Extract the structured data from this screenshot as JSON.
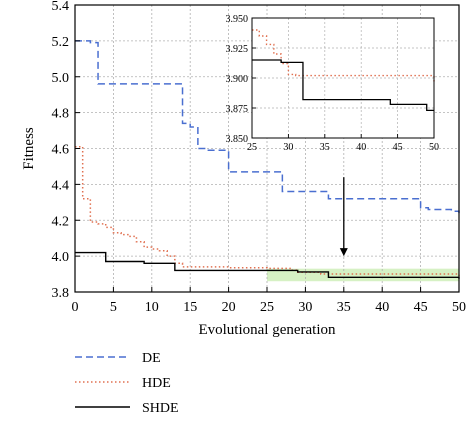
{
  "chart_data": [
    {
      "type": "line",
      "xlabel": "Evolutional generation",
      "ylabel": "Fitness",
      "xlim": [
        0,
        50
      ],
      "ylim": [
        3.8,
        5.4
      ],
      "x_ticks": [
        0,
        5,
        10,
        15,
        20,
        25,
        30,
        35,
        40,
        45,
        50
      ],
      "y_ticks": [
        3.8,
        4.0,
        4.2,
        4.4,
        4.6,
        4.8,
        5.0,
        5.2,
        5.4
      ],
      "grid": true,
      "legend_position": "bottom-left, below plot",
      "highlight_region": {
        "x": [
          25,
          50
        ],
        "y": [
          3.86,
          3.93
        ],
        "color": "#c8ecb0"
      },
      "arrow": {
        "x": 35,
        "y_from": 4.44,
        "y_to": 4.0
      },
      "series": [
        {
          "name": "DE",
          "color": "#4a6fd0",
          "style": "dashed",
          "x": [
            0,
            2,
            3,
            13,
            14,
            15,
            16,
            17,
            18,
            19,
            20,
            26,
            27,
            28,
            32,
            33,
            44,
            45,
            46,
            49,
            50
          ],
          "y": [
            5.2,
            5.19,
            4.96,
            4.96,
            4.74,
            4.72,
            4.6,
            4.59,
            4.59,
            4.59,
            4.47,
            4.47,
            4.36,
            4.36,
            4.36,
            4.32,
            4.32,
            4.27,
            4.26,
            4.25,
            4.24
          ]
        },
        {
          "name": "HDE",
          "color": "#e07050",
          "style": "dotted",
          "x": [
            0,
            1,
            2,
            3,
            4,
            5,
            6,
            7,
            8,
            9,
            10,
            11,
            12,
            13,
            14,
            20,
            25,
            28,
            29,
            32,
            33,
            50
          ],
          "y": [
            4.61,
            4.32,
            4.19,
            4.18,
            4.16,
            4.13,
            4.12,
            4.11,
            4.08,
            4.05,
            4.04,
            4.03,
            4.0,
            3.96,
            3.94,
            3.935,
            3.932,
            3.922,
            3.91,
            3.9,
            3.9,
            3.89
          ]
        },
        {
          "name": "SHDE",
          "color": "#000000",
          "style": "solid",
          "x": [
            0,
            3,
            4,
            8,
            9,
            12,
            13,
            25,
            29,
            32,
            33,
            50
          ],
          "y": [
            4.02,
            4.02,
            3.97,
            3.97,
            3.96,
            3.96,
            3.92,
            3.92,
            3.912,
            3.912,
            3.882,
            3.873
          ]
        }
      ]
    },
    {
      "type": "line",
      "title": "",
      "xlim": [
        25,
        50
      ],
      "ylim": [
        3.85,
        3.95
      ],
      "x_ticks": [
        25,
        30,
        35,
        40,
        45,
        50
      ],
      "y_ticks": [
        3.85,
        3.875,
        3.9,
        3.925,
        3.95
      ],
      "y_tick_labels": [
        "3.850",
        "3.875",
        "3.900",
        "3.925",
        "3.950"
      ],
      "grid": true,
      "series": [
        {
          "name": "HDE",
          "color": "#e07050",
          "style": "dotted",
          "x": [
            25,
            26,
            27,
            28,
            29,
            30,
            31,
            49,
            50
          ],
          "y": [
            3.94,
            3.935,
            3.928,
            3.92,
            3.912,
            3.903,
            3.902,
            3.902,
            3.895
          ]
        },
        {
          "name": "SHDE",
          "color": "#000000",
          "style": "solid",
          "x": [
            25,
            28,
            29,
            31,
            32,
            43,
            44,
            48,
            49,
            50
          ],
          "y": [
            3.915,
            3.915,
            3.913,
            3.913,
            3.882,
            3.882,
            3.878,
            3.878,
            3.873,
            3.873
          ]
        }
      ]
    }
  ],
  "legend": [
    {
      "name": "DE",
      "color": "#4a6fd0",
      "style": "dashed"
    },
    {
      "name": "HDE",
      "color": "#e07050",
      "style": "dotted"
    },
    {
      "name": "SHDE",
      "color": "#000000",
      "style": "solid"
    }
  ]
}
